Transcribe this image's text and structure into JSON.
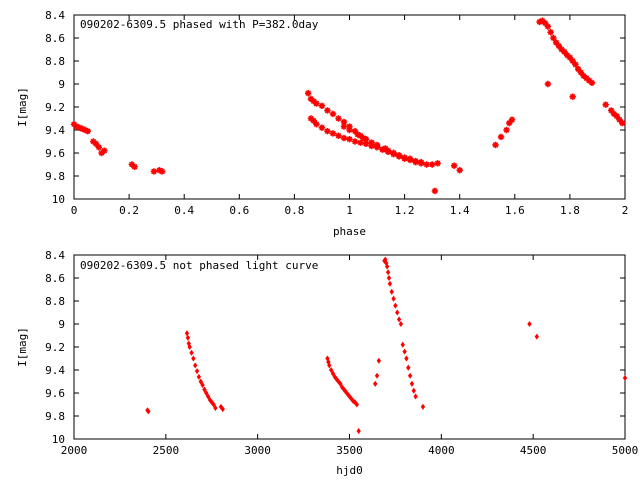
{
  "chart_data": [
    {
      "type": "scatter",
      "title": "090202-6309.5 phased with P=382.0day",
      "xlabel": "phase",
      "ylabel": "I[mag]",
      "xlim": [
        0,
        2
      ],
      "ylim": [
        8.4,
        10
      ],
      "y_inverted": true,
      "x_ticks": [
        "0",
        "0.2",
        "0.4",
        "0.6",
        "0.8",
        "1",
        "1.2",
        "1.4",
        "1.6",
        "1.8",
        "2"
      ],
      "y_ticks": [
        "8.4",
        "8.6",
        "8.8",
        "9",
        "9.2",
        "9.4",
        "9.6",
        "9.8",
        "10"
      ],
      "grid": false,
      "color": "#ff0000",
      "marker": "star",
      "series": [
        {
          "x": [
            0.0,
            0.01,
            0.02,
            0.03,
            0.04,
            0.05,
            0.07,
            0.08,
            0.09,
            0.1,
            0.11,
            0.21,
            0.22,
            0.29,
            0.31,
            0.32,
            0.85,
            0.86,
            0.87,
            0.88,
            0.9,
            0.92,
            0.94,
            0.96,
            0.98,
            1.0,
            1.02,
            1.04,
            1.06,
            1.08,
            1.1,
            1.12,
            1.14,
            1.16,
            1.18,
            1.2,
            1.22,
            1.24,
            1.26,
            1.28,
            1.3,
            1.32,
            1.38,
            1.4,
            0.86,
            0.87,
            0.88,
            0.9,
            0.92,
            0.94,
            0.96,
            0.98,
            1.0,
            1.02,
            1.04,
            1.06,
            1.08,
            1.1,
            1.12,
            1.14,
            1.16,
            1.18,
            1.2,
            1.22,
            1.24,
            1.26,
            0.98,
            1.0,
            1.03,
            1.05,
            1.08,
            1.1,
            1.13,
            1.16,
            1.31,
            1.53,
            1.55,
            1.57,
            1.58,
            1.59,
            1.69,
            1.7,
            1.71,
            1.72,
            1.73,
            1.74,
            1.75,
            1.76,
            1.77,
            1.78,
            1.79,
            1.8,
            1.81,
            1.82,
            1.83,
            1.84,
            1.85,
            1.86,
            1.87,
            1.88,
            1.72,
            1.81,
            1.93,
            1.95,
            1.96,
            1.97,
            1.98,
            1.99
          ],
          "y": [
            9.35,
            9.37,
            9.38,
            9.39,
            9.4,
            9.41,
            9.5,
            9.52,
            9.55,
            9.6,
            9.58,
            9.7,
            9.72,
            9.76,
            9.75,
            9.76,
            9.08,
            9.13,
            9.15,
            9.17,
            9.19,
            9.23,
            9.26,
            9.3,
            9.33,
            9.37,
            9.41,
            9.45,
            9.48,
            9.51,
            9.54,
            9.57,
            9.59,
            9.61,
            9.63,
            9.65,
            9.66,
            9.68,
            9.69,
            9.7,
            9.7,
            9.69,
            9.71,
            9.75,
            9.3,
            9.32,
            9.35,
            9.38,
            9.41,
            9.43,
            9.45,
            9.47,
            9.48,
            9.5,
            9.51,
            9.52,
            9.54,
            9.55,
            9.57,
            9.58,
            9.6,
            9.62,
            9.64,
            9.65,
            9.67,
            9.68,
            9.37,
            9.4,
            9.44,
            9.47,
            9.51,
            9.53,
            9.56,
            9.6,
            9.93,
            9.53,
            9.46,
            9.4,
            9.34,
            9.31,
            8.46,
            8.45,
            8.47,
            8.5,
            8.55,
            8.6,
            8.64,
            8.67,
            8.7,
            8.72,
            8.75,
            8.77,
            8.8,
            8.83,
            8.87,
            8.9,
            8.93,
            8.95,
            8.97,
            8.99,
            9.0,
            9.11,
            9.18,
            9.23,
            9.26,
            9.28,
            9.31,
            9.34
          ]
        }
      ]
    },
    {
      "type": "scatter",
      "title": "090202-6309.5 not phased light curve",
      "xlabel": "hjd0",
      "ylabel": "I[mag]",
      "xlim": [
        2000,
        5000
      ],
      "ylim": [
        8.4,
        10
      ],
      "y_inverted": true,
      "x_ticks": [
        "2000",
        "2500",
        "3000",
        "3500",
        "4000",
        "4500",
        "5000"
      ],
      "y_ticks": [
        "8.4",
        "8.6",
        "8.8",
        "9",
        "9.2",
        "9.4",
        "9.6",
        "9.8",
        "10"
      ],
      "grid": false,
      "color": "#ff0000",
      "marker": "diamond",
      "series": [
        {
          "x": [
            2400,
            2405,
            2615,
            2620,
            2625,
            2630,
            2640,
            2650,
            2660,
            2670,
            2680,
            2690,
            2700,
            2710,
            2720,
            2730,
            2740,
            2750,
            2760,
            2770,
            2800,
            2810,
            3380,
            3385,
            3390,
            3400,
            3410,
            3420,
            3430,
            3440,
            3450,
            3460,
            3470,
            3480,
            3490,
            3500,
            3510,
            3520,
            3530,
            3540,
            3550,
            3640,
            3650,
            3660,
            3690,
            3695,
            3700,
            3705,
            3710,
            3715,
            3720,
            3730,
            3740,
            3750,
            3760,
            3770,
            3780,
            3790,
            3800,
            3810,
            3820,
            3830,
            3840,
            3850,
            3860,
            3900,
            4480,
            4520,
            5000
          ],
          "y": [
            9.75,
            9.76,
            9.08,
            9.12,
            9.17,
            9.2,
            9.25,
            9.3,
            9.36,
            9.41,
            9.46,
            9.5,
            9.53,
            9.57,
            9.6,
            9.63,
            9.66,
            9.68,
            9.7,
            9.73,
            9.72,
            9.74,
            9.3,
            9.33,
            9.36,
            9.4,
            9.43,
            9.46,
            9.48,
            9.5,
            9.52,
            9.55,
            9.57,
            9.59,
            9.61,
            9.63,
            9.65,
            9.67,
            9.68,
            9.7,
            9.93,
            9.52,
            9.45,
            9.32,
            8.45,
            8.44,
            8.47,
            8.5,
            8.55,
            8.6,
            8.65,
            8.72,
            8.78,
            8.84,
            8.9,
            8.96,
            9.0,
            9.18,
            9.24,
            9.3,
            9.38,
            9.45,
            9.52,
            9.58,
            9.63,
            9.72,
            9.0,
            9.11,
            9.47
          ]
        }
      ]
    }
  ]
}
